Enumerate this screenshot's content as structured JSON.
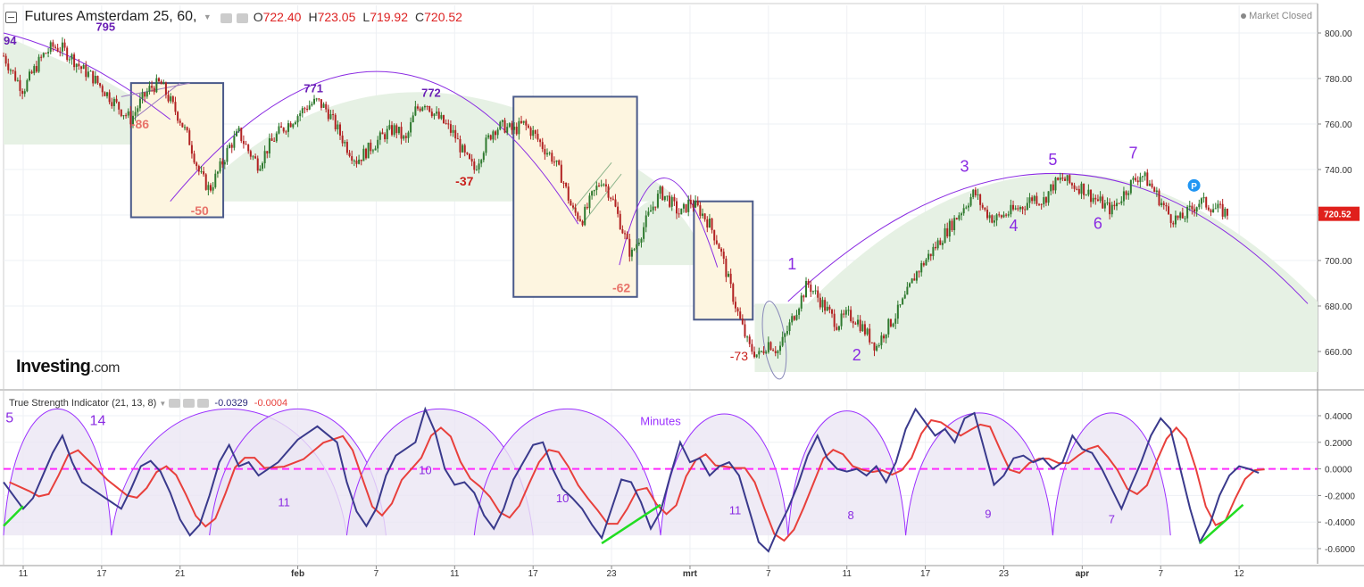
{
  "header": {
    "symbol": "Futures Amsterdam 25, 60,",
    "ohlc": [
      {
        "k": "O",
        "v": "722.40"
      },
      {
        "k": "H",
        "v": "723.05"
      },
      {
        "k": "L",
        "v": "719.92"
      },
      {
        "k": "C",
        "v": "720.52"
      }
    ],
    "market_status": "Market Closed"
  },
  "indicator": {
    "label": "True Strength Indicator (21, 13, 8)",
    "value1": "-0.0329",
    "value2": "-0.0004"
  },
  "watermark": {
    "brand": "Investing",
    "suffix": ".com"
  },
  "last_price_tag": "720.52",
  "colors": {
    "up": "#2f7a2f",
    "down": "#b22222",
    "tsi": "#3a3a8c",
    "signal": "#e8403c",
    "zero": "#ff2aff",
    "annot": "#8a2be2",
    "box_fill": "#fdf5e0",
    "box_stroke": "#4a5a8a",
    "green_fill": "#e6f1e4",
    "purple_fill": "#ebe6f4",
    "price_tag": "#e0201c",
    "p_badge": "#2196f3"
  },
  "chart_data": [
    {
      "type": "candlestick",
      "series_name": "Futures Amsterdam 25, 60",
      "ylim": [
        648,
        810
      ],
      "y_ticks": [
        "800.00",
        "780.00",
        "760.00",
        "740.00",
        "720.00",
        "700.00",
        "680.00",
        "660.00"
      ],
      "x_tick_labels": [
        "11",
        "17",
        "21",
        "feb",
        "7",
        "11",
        "17",
        "23",
        "mrt",
        "7",
        "11",
        "17",
        "23",
        "apr",
        "7",
        "12"
      ],
      "x_tick_pos": [
        1,
        5,
        9,
        15,
        19,
        23,
        27,
        31,
        35,
        39,
        43,
        47,
        51,
        55,
        59,
        63
      ],
      "x_range": [
        0,
        67
      ],
      "close_path": [
        [
          0,
          790
        ],
        [
          0.5,
          782
        ],
        [
          1,
          775
        ],
        [
          1.5,
          783
        ],
        [
          2,
          790
        ],
        [
          2.5,
          794
        ],
        [
          3,
          793
        ],
        [
          3.5,
          789
        ],
        [
          4,
          784
        ],
        [
          4.5,
          781
        ],
        [
          5,
          776
        ],
        [
          5.5,
          771
        ],
        [
          6,
          766
        ],
        [
          6.5,
          762
        ],
        [
          7,
          770
        ],
        [
          7.5,
          776
        ],
        [
          8,
          778
        ],
        [
          8.5,
          770
        ],
        [
          9,
          762
        ],
        [
          9.5,
          752
        ],
        [
          10,
          738
        ],
        [
          10.5,
          731
        ],
        [
          11,
          740
        ],
        [
          11.5,
          750
        ],
        [
          12,
          756
        ],
        [
          12.5,
          748
        ],
        [
          13,
          742
        ],
        [
          13.5,
          750
        ],
        [
          14,
          756
        ],
        [
          14.5,
          760
        ],
        [
          15,
          764
        ],
        [
          15.5,
          768
        ],
        [
          16,
          770
        ],
        [
          16.5,
          766
        ],
        [
          17,
          758
        ],
        [
          17.5,
          750
        ],
        [
          18,
          744
        ],
        [
          18.5,
          748
        ],
        [
          19,
          752
        ],
        [
          19.5,
          756
        ],
        [
          20,
          758
        ],
        [
          20.5,
          752
        ],
        [
          21,
          766
        ],
        [
          21.5,
          770
        ],
        [
          22,
          764
        ],
        [
          22.5,
          760
        ],
        [
          23,
          755
        ],
        [
          23.5,
          746
        ],
        [
          24,
          740
        ],
        [
          24.5,
          750
        ],
        [
          25,
          758
        ],
        [
          25.5,
          759
        ],
        [
          26,
          757
        ],
        [
          26.5,
          760
        ],
        [
          27,
          756
        ],
        [
          27.5,
          750
        ],
        [
          28,
          745
        ],
        [
          28.5,
          736
        ],
        [
          29,
          722
        ],
        [
          29.5,
          718
        ],
        [
          30,
          728
        ],
        [
          30.5,
          736
        ],
        [
          31,
          728
        ],
        [
          31.5,
          715
        ],
        [
          32,
          702
        ],
        [
          32.5,
          712
        ],
        [
          33,
          722
        ],
        [
          33.5,
          730
        ],
        [
          34,
          726
        ],
        [
          34.5,
          720
        ],
        [
          35,
          726
        ],
        [
          35.5,
          722
        ],
        [
          36,
          716
        ],
        [
          36.5,
          706
        ],
        [
          37,
          690
        ],
        [
          37.5,
          675
        ],
        [
          38,
          662
        ],
        [
          38.5,
          658
        ],
        [
          39,
          664
        ],
        [
          39.5,
          660
        ],
        [
          40,
          670
        ],
        [
          40.5,
          680
        ],
        [
          41,
          690
        ],
        [
          41.5,
          684
        ],
        [
          42,
          678
        ],
        [
          42.5,
          672
        ],
        [
          43,
          676
        ],
        [
          43.5,
          674
        ],
        [
          44,
          668
        ],
        [
          44.5,
          662
        ],
        [
          45,
          670
        ],
        [
          45.5,
          676
        ],
        [
          46,
          684
        ],
        [
          46.5,
          694
        ],
        [
          47,
          700
        ],
        [
          47.5,
          706
        ],
        [
          48,
          712
        ],
        [
          48.5,
          718
        ],
        [
          49,
          724
        ],
        [
          49.5,
          730
        ],
        [
          50,
          722
        ],
        [
          50.5,
          718
        ],
        [
          51,
          720
        ],
        [
          51.5,
          722
        ],
        [
          52,
          724
        ],
        [
          52.5,
          728
        ],
        [
          53,
          726
        ],
        [
          53.5,
          733
        ],
        [
          54,
          736
        ],
        [
          54.5,
          733
        ],
        [
          55,
          732
        ],
        [
          55.5,
          728
        ],
        [
          56,
          725
        ],
        [
          56.5,
          722
        ],
        [
          57,
          728
        ],
        [
          57.5,
          734
        ],
        [
          58,
          738
        ],
        [
          58.5,
          733
        ],
        [
          59,
          726
        ],
        [
          59.5,
          719
        ],
        [
          60,
          718
        ],
        [
          60.5,
          722
        ],
        [
          61,
          726
        ],
        [
          61.5,
          724
        ],
        [
          62,
          722
        ],
        [
          62.5,
          720.5
        ]
      ],
      "annotations": [
        "795",
        "-86",
        "-50",
        "771",
        "772",
        "-37",
        "-62",
        "-73",
        "1",
        "2",
        "3",
        "4",
        "5",
        "6",
        "7"
      ],
      "edge_label": "94"
    },
    {
      "type": "line",
      "title": "True Strength Indicator (21, 13, 8)",
      "ylim": [
        -0.72,
        0.52
      ],
      "y_ticks": [
        "0.4000",
        "0.2000",
        "0.0000",
        "-0.2000",
        "-0.4000",
        "-0.6000"
      ],
      "zero_line": 0.0,
      "tsi_path": [
        [
          0,
          -0.1
        ],
        [
          1,
          -0.3
        ],
        [
          1.5,
          -0.22
        ],
        [
          2,
          -0.05
        ],
        [
          2.5,
          0.12
        ],
        [
          3,
          0.25
        ],
        [
          3.5,
          0.05
        ],
        [
          4,
          -0.1
        ],
        [
          5,
          -0.2
        ],
        [
          6,
          -0.3
        ],
        [
          6.5,
          -0.15
        ],
        [
          7,
          0.02
        ],
        [
          7.5,
          0.06
        ],
        [
          8,
          -0.02
        ],
        [
          8.5,
          -0.18
        ],
        [
          9,
          -0.38
        ],
        [
          9.5,
          -0.5
        ],
        [
          10,
          -0.42
        ],
        [
          10.5,
          -0.2
        ],
        [
          11,
          0.05
        ],
        [
          11.5,
          0.18
        ],
        [
          12,
          0.02
        ],
        [
          12.5,
          0.05
        ],
        [
          13,
          -0.05
        ],
        [
          14,
          0.05
        ],
        [
          15,
          0.22
        ],
        [
          16,
          0.32
        ],
        [
          17,
          0.2
        ],
        [
          17.5,
          -0.1
        ],
        [
          18,
          -0.32
        ],
        [
          18.5,
          -0.43
        ],
        [
          19,
          -0.3
        ],
        [
          19.5,
          -0.05
        ],
        [
          20,
          0.1
        ],
        [
          21,
          0.2
        ],
        [
          21.5,
          0.45
        ],
        [
          22,
          0.28
        ],
        [
          22.5,
          0.0
        ],
        [
          23,
          -0.12
        ],
        [
          23.5,
          -0.1
        ],
        [
          24,
          -0.18
        ],
        [
          24.5,
          -0.35
        ],
        [
          25,
          -0.45
        ],
        [
          25.5,
          -0.3
        ],
        [
          26,
          -0.08
        ],
        [
          26.5,
          0.05
        ],
        [
          27,
          0.18
        ],
        [
          27.5,
          0.2
        ],
        [
          28,
          0.0
        ],
        [
          28.5,
          -0.15
        ],
        [
          29,
          -0.22
        ],
        [
          29.5,
          -0.3
        ],
        [
          30,
          -0.42
        ],
        [
          30.5,
          -0.52
        ],
        [
          31,
          -0.3
        ],
        [
          31.5,
          -0.08
        ],
        [
          32,
          -0.1
        ],
        [
          32.5,
          -0.25
        ],
        [
          33,
          -0.45
        ],
        [
          33.5,
          -0.32
        ],
        [
          34,
          -0.05
        ],
        [
          34.5,
          0.2
        ],
        [
          35,
          0.05
        ],
        [
          35.5,
          0.08
        ],
        [
          36,
          -0.05
        ],
        [
          36.5,
          0.02
        ],
        [
          37,
          0.05
        ],
        [
          37.5,
          -0.05
        ],
        [
          38,
          -0.3
        ],
        [
          38.5,
          -0.55
        ],
        [
          39,
          -0.62
        ],
        [
          39.5,
          -0.45
        ],
        [
          40,
          -0.3
        ],
        [
          40.5,
          -0.12
        ],
        [
          41,
          0.1
        ],
        [
          41.5,
          0.25
        ],
        [
          42,
          0.08
        ],
        [
          42.5,
          0.0
        ],
        [
          43,
          -0.02
        ],
        [
          43.5,
          0.0
        ],
        [
          44,
          -0.05
        ],
        [
          44.5,
          0.02
        ],
        [
          45,
          -0.1
        ],
        [
          45.5,
          0.05
        ],
        [
          46,
          0.3
        ],
        [
          46.5,
          0.45
        ],
        [
          47,
          0.35
        ],
        [
          47.5,
          0.25
        ],
        [
          48,
          0.3
        ],
        [
          48.5,
          0.2
        ],
        [
          49,
          0.38
        ],
        [
          49.5,
          0.42
        ],
        [
          50,
          0.15
        ],
        [
          50.5,
          -0.12
        ],
        [
          51,
          -0.05
        ],
        [
          51.5,
          0.08
        ],
        [
          52,
          0.1
        ],
        [
          52.5,
          0.05
        ],
        [
          53,
          0.08
        ],
        [
          53.5,
          0.0
        ],
        [
          54,
          0.05
        ],
        [
          54.5,
          0.25
        ],
        [
          55,
          0.15
        ],
        [
          55.5,
          0.12
        ],
        [
          56,
          0.0
        ],
        [
          56.5,
          -0.15
        ],
        [
          57,
          -0.3
        ],
        [
          57.5,
          -0.12
        ],
        [
          58,
          0.05
        ],
        [
          58.5,
          0.25
        ],
        [
          59,
          0.38
        ],
        [
          59.5,
          0.3
        ],
        [
          60,
          0.0
        ],
        [
          60.5,
          -0.3
        ],
        [
          61,
          -0.55
        ],
        [
          61.5,
          -0.42
        ],
        [
          62,
          -0.2
        ],
        [
          62.5,
          -0.05
        ],
        [
          63,
          0.02
        ],
        [
          63.5,
          0.0
        ],
        [
          64,
          -0.03
        ]
      ],
      "signal_lag": 0.9,
      "cycle_labels": [
        "14",
        "11",
        "10",
        "10",
        "11",
        "8",
        "9",
        "7"
      ],
      "cycle_caption": "Minutes",
      "edge_label": "5"
    }
  ]
}
